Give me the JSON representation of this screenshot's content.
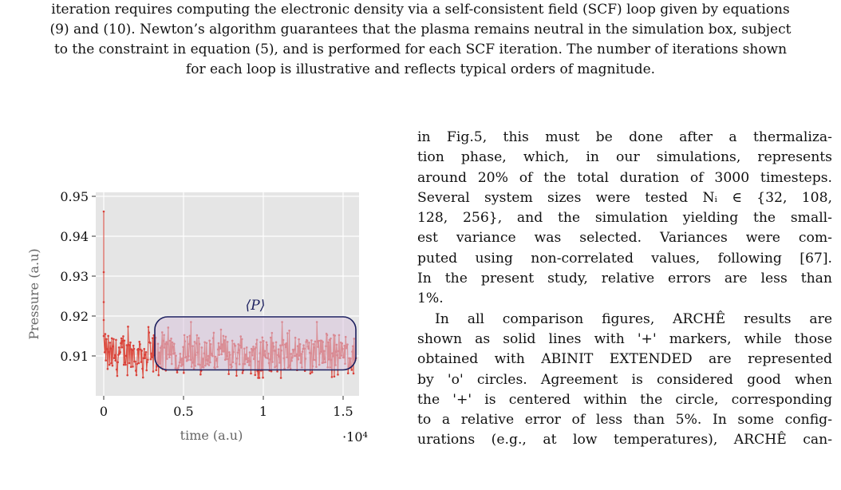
{
  "caption": {
    "lines": [
      "iteration requires computing the electronic density via a self-consistent field (SCF) loop given by equations",
      "(9) and (10). Newton’s algorithm guarantees that the plasma remains neutral in the simulation box, subject",
      "to the constraint in equation (5), and is performed for each SCF iteration. The number of iterations shown",
      "for each loop is illustrative and reflects typical orders of magnitude."
    ]
  },
  "body_text": {
    "lines": [
      "in Fig.5, this must be done after a thermaliza-",
      "tion phase, which, in our simulations, represents",
      "around 20% of the total duration of 3000 timesteps.",
      "Several system sizes were tested Nᵢ ∈ {32, 108,",
      "128, 256}, and the simulation yielding the small-",
      "est variance was selected.  Variances were com-",
      "puted using non-correlated values, following [67].",
      "In the present study, relative errors are less than",
      "1%.",
      "In all comparison figures, ARCHÊ results are",
      "shown as solid lines with '+' markers, while those",
      "obtained with ABINIT EXTENDED are represented",
      "by 'o' circles. Agreement is considered good when",
      "the '+' is centered within the circle, corresponding",
      "to a relative error of less than 5%. In some config-",
      "urations (e.g., at low temperatures), ARCHÊ can-"
    ]
  },
  "chart_data": {
    "type": "line",
    "title": "",
    "xlabel": "time (a.u)",
    "ylabel": "Pressure (a.u)",
    "x_multiplier_label": "·10⁴",
    "xlim": [
      -0.05,
      1.6
    ],
    "ylim": [
      0.9,
      0.951
    ],
    "xticks": [
      0,
      0.5,
      1,
      1.5
    ],
    "xtick_labels": [
      "0",
      "0.5",
      "1",
      "1.5"
    ],
    "yticks": [
      0.91,
      0.92,
      0.93,
      0.94,
      0.95
    ],
    "ytick_labels": [
      "0.91",
      "0.92",
      "0.93",
      "0.94",
      "0.95"
    ],
    "grid": true,
    "background_color": "#e5e5e5",
    "series": [
      {
        "color_line": "#e8a070",
        "color_markers": "#d9413a",
        "initial_points": [
          {
            "x": 0.0,
            "y": 0.9462
          },
          {
            "x": 0.0,
            "y": 0.931
          },
          {
            "x": 0.0,
            "y": 0.9235
          },
          {
            "x": 0.0,
            "y": 0.919
          },
          {
            "x": 0.0,
            "y": 0.915
          }
        ],
        "fluctuation_mean": 0.9103,
        "fluctuation_range": [
          0.9045,
          0.9185
        ],
        "x_range": [
          0.0,
          1.58
        ]
      }
    ],
    "annotation": {
      "label": "⟨P⟩",
      "x_range": [
        0.32,
        1.58
      ],
      "y_range": [
        0.9065,
        0.9198
      ],
      "fill": "#d9c4dc",
      "stroke": "#1b1f5e"
    }
  }
}
